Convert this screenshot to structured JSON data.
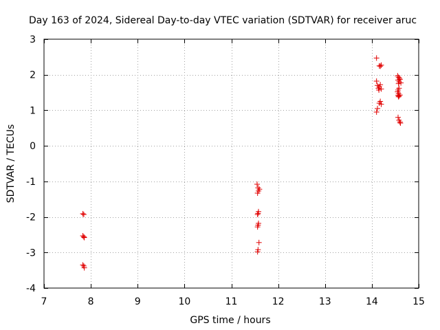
{
  "chart_data": {
    "type": "scatter",
    "title": "Day 163 of 2024, Sidereal Day-to-day VTEC variation (SDTVAR) for receiver aruc",
    "xlabel": "GPS time / hours",
    "ylabel": "SDTVAR / TECUs",
    "xlim": [
      7,
      15
    ],
    "ylim": [
      -4,
      3
    ],
    "xticks": [
      7,
      8,
      9,
      10,
      11,
      12,
      13,
      14,
      15
    ],
    "yticks": [
      -4,
      -3,
      -2,
      -1,
      0,
      1,
      2,
      3
    ],
    "grid": true,
    "marker": "plus",
    "color": "#e00000",
    "series": [
      {
        "name": "SDTVAR",
        "points": [
          [
            7.83,
            -1.91
          ],
          [
            7.85,
            -1.93
          ],
          [
            7.83,
            -2.53
          ],
          [
            7.85,
            -2.56
          ],
          [
            7.86,
            -2.58
          ],
          [
            7.83,
            -3.35
          ],
          [
            7.85,
            -3.38
          ],
          [
            7.86,
            -3.43
          ],
          [
            11.55,
            -1.08
          ],
          [
            11.57,
            -1.18
          ],
          [
            11.6,
            -1.22
          ],
          [
            11.58,
            -1.27
          ],
          [
            11.56,
            -1.33
          ],
          [
            11.58,
            -1.85
          ],
          [
            11.57,
            -1.9
          ],
          [
            11.56,
            -1.93
          ],
          [
            11.58,
            -2.18
          ],
          [
            11.57,
            -2.23
          ],
          [
            11.56,
            -2.28
          ],
          [
            11.59,
            -2.72
          ],
          [
            11.57,
            -2.92
          ],
          [
            11.56,
            -2.98
          ],
          [
            14.1,
            2.47
          ],
          [
            14.16,
            2.25
          ],
          [
            14.2,
            2.27
          ],
          [
            14.18,
            2.24
          ],
          [
            14.1,
            1.82
          ],
          [
            14.12,
            1.7
          ],
          [
            14.16,
            1.66
          ],
          [
            14.18,
            1.72
          ],
          [
            14.14,
            1.62
          ],
          [
            14.2,
            1.6
          ],
          [
            14.15,
            1.57
          ],
          [
            14.18,
            1.25
          ],
          [
            14.16,
            1.2
          ],
          [
            14.2,
            1.17
          ],
          [
            14.12,
            1.05
          ],
          [
            14.1,
            0.95
          ],
          [
            14.55,
            1.97
          ],
          [
            14.57,
            1.93
          ],
          [
            14.59,
            1.9
          ],
          [
            14.6,
            1.87
          ],
          [
            14.56,
            1.85
          ],
          [
            14.58,
            1.8
          ],
          [
            14.62,
            1.77
          ],
          [
            14.57,
            1.75
          ],
          [
            14.58,
            1.62
          ],
          [
            14.56,
            1.57
          ],
          [
            14.55,
            1.52
          ],
          [
            14.57,
            1.47
          ],
          [
            14.56,
            1.42
          ],
          [
            14.58,
            1.4
          ],
          [
            14.6,
            1.43
          ],
          [
            14.57,
            1.38
          ],
          [
            14.56,
            0.8
          ],
          [
            14.58,
            0.72
          ],
          [
            14.6,
            0.67
          ],
          [
            14.61,
            0.64
          ]
        ]
      }
    ]
  }
}
